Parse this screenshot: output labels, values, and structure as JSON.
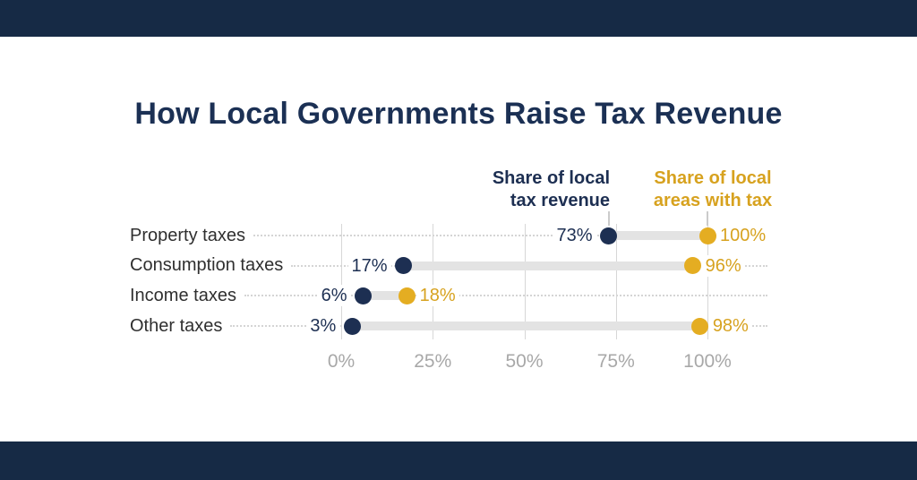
{
  "title": "How Local Governments Raise Tax Revenue",
  "legend": {
    "revenue": {
      "line1": "Share of local",
      "line2": "tax revenue"
    },
    "areas": {
      "line1": "Share of local",
      "line2": "areas with tax"
    }
  },
  "colors": {
    "background": "#ffffff",
    "band": "#162a45",
    "title_text": "#1b3054",
    "navy": "#1d2f52",
    "gold": "#e4ad22",
    "gold_text": "#d7a21f",
    "category_text": "#2f2f2f",
    "axis_text": "#a8a8a8",
    "gridline": "#d7d7d7",
    "connector": "#e3e3e3",
    "leader_dots": "#d5d5d5"
  },
  "chart_data": {
    "type": "scatter",
    "variant": "dumbbell",
    "title": "How Local Governments Raise Tax Revenue",
    "categories": [
      "Property taxes",
      "Consumption taxes",
      "Income taxes",
      "Other taxes"
    ],
    "series": [
      {
        "name": "Share of local tax revenue",
        "color_key": "navy",
        "values": [
          73,
          17,
          6,
          3
        ]
      },
      {
        "name": "Share of local areas with tax",
        "color_key": "gold",
        "values": [
          100,
          96,
          18,
          98
        ]
      }
    ],
    "value_suffix": "%",
    "x_ticks": [
      "0%",
      "25%",
      "50%",
      "75%",
      "100%"
    ],
    "xlim": [
      0,
      100
    ],
    "grid": "vertical-gridlines",
    "legend_position": "top-right-of-plot"
  }
}
